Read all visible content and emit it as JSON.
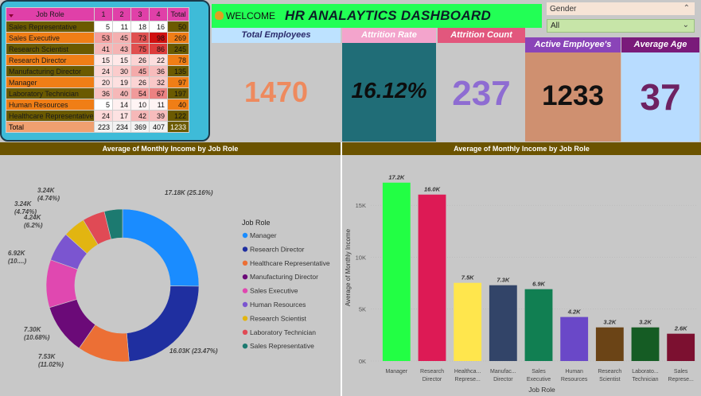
{
  "matrix": {
    "headers": [
      "Job Role",
      "1",
      "2",
      "3",
      "4",
      "Total"
    ],
    "rows": [
      {
        "role": "Sales Representative",
        "v": [
          "5",
          "11",
          "18",
          "16"
        ],
        "total": "50",
        "bg": "#6b5a00",
        "c": [
          "#ffffff",
          "#ffffff",
          "#ffffff",
          "#ffffff"
        ]
      },
      {
        "role": "Sales Executive",
        "v": [
          "53",
          "45",
          "73",
          "98"
        ],
        "total": "269",
        "bg": "#f07e16",
        "c": [
          "#f4a0a0",
          "#f4b0b0",
          "#e05050",
          "#d01010"
        ]
      },
      {
        "role": "Research Scientist",
        "v": [
          "41",
          "43",
          "75",
          "86"
        ],
        "total": "245",
        "bg": "#6b5a00",
        "c": [
          "#f6b8b8",
          "#f5b4b4",
          "#e05050",
          "#dd3c3c"
        ]
      },
      {
        "role": "Research Director",
        "v": [
          "15",
          "15",
          "26",
          "22"
        ],
        "total": "78",
        "bg": "#f07e16",
        "c": [
          "#ffe8e8",
          "#ffe8e8",
          "#fbd4d4",
          "#fcdede"
        ]
      },
      {
        "role": "Manufacturing Director",
        "v": [
          "24",
          "30",
          "45",
          "36"
        ],
        "total": "135",
        "bg": "#6b5a00",
        "c": [
          "#fcd8d8",
          "#fbcccc",
          "#f4aaaa",
          "#f7bcbc"
        ]
      },
      {
        "role": "Manager",
        "v": [
          "20",
          "19",
          "26",
          "32"
        ],
        "total": "97",
        "bg": "#f07e16",
        "c": [
          "#fde0e0",
          "#fde0e0",
          "#fbd4d4",
          "#f9c8c8"
        ]
      },
      {
        "role": "Laboratory Technician",
        "v": [
          "36",
          "40",
          "54",
          "67"
        ],
        "total": "197",
        "bg": "#6b5a00",
        "c": [
          "#f8c2c2",
          "#f6b8b8",
          "#f09a9a",
          "#ec8282"
        ]
      },
      {
        "role": "Human Resources",
        "v": [
          "5",
          "14",
          "10",
          "11"
        ],
        "total": "40",
        "bg": "#f07e16",
        "c": [
          "#ffffff",
          "#fff0f0",
          "#fff4f4",
          "#fff4f4"
        ]
      },
      {
        "role": "Healthcare Representative",
        "v": [
          "24",
          "17",
          "42",
          "39"
        ],
        "total": "122",
        "bg": "#6b5a00",
        "c": [
          "#fcd8d8",
          "#fde2e2",
          "#f6b8b8",
          "#f7bcbc"
        ]
      }
    ],
    "total_row": {
      "role": "Total",
      "v": [
        "223",
        "234",
        "369",
        "407"
      ],
      "total": "1233"
    }
  },
  "header": {
    "welcome": "WELCOME",
    "title": "HR ANALAYTICS DASHBOARD"
  },
  "slicer": {
    "label": "Gender",
    "value": "All"
  },
  "kpis": {
    "total_employees": {
      "title": "Total Employees",
      "value": "1470"
    },
    "attrition_rate": {
      "title": "Attrition Rate",
      "value": "16.12%"
    },
    "attrition_count": {
      "title": "Attrition Count",
      "value": "237"
    },
    "active_employees": {
      "title": "Active Employee's",
      "value": "1233"
    },
    "average_age": {
      "title": "Average Age",
      "value": "37"
    }
  },
  "chart_data": [
    {
      "type": "pie",
      "title": "Average of Monthly Income by Job Role",
      "legend_title": "Job Role",
      "legend_position": "right",
      "slices": [
        {
          "name": "Manager",
          "value": 17.18,
          "label": "17.18K (25.16%)",
          "color": "#1a8cff"
        },
        {
          "name": "Research Director",
          "value": 16.03,
          "label": "16.03K (23.47%)",
          "color": "#1f2fa0"
        },
        {
          "name": "Healthcare Representative",
          "value": 7.53,
          "label": "7.53K (11.02%)",
          "color": "#ec6f35"
        },
        {
          "name": "Manufacturing Director",
          "value": 7.3,
          "label": "7.30K (10.68%)",
          "color": "#6b0a78"
        },
        {
          "name": "Sales Executive",
          "value": 6.92,
          "label": "6.92K (10....)",
          "color": "#e048b0"
        },
        {
          "name": "Human Resources",
          "value": 4.24,
          "label": "4.24K (6.2%)",
          "color": "#7b55d0"
        },
        {
          "name": "Research Scientist",
          "value": 3.24,
          "label": "3.24K (4.74%)",
          "color": "#e2b511"
        },
        {
          "name": "Laboratory Technician",
          "value": 3.24,
          "label": "3.24K (4.74%)",
          "color": "#e04a55"
        },
        {
          "name": "Sales Representative",
          "value": 2.63,
          "label": "",
          "color": "#1c7a70"
        }
      ]
    },
    {
      "type": "bar",
      "title": "Average of Monthly Income by Job Role",
      "xlabel": "Job Role",
      "ylabel": "Average of Monthly Income",
      "ylim": [
        0,
        18000
      ],
      "yticks": [
        "0K",
        "5K",
        "10K",
        "15K"
      ],
      "categories": [
        "Manager",
        "Research Director",
        "Healthca... Represe...",
        "Manufac... Director",
        "Sales Executive",
        "Human Resources",
        "Research Scientist",
        "Laborato... Technician",
        "Sales Represe..."
      ],
      "values": [
        17180,
        16030,
        7530,
        7300,
        6920,
        4240,
        3240,
        3240,
        2630
      ],
      "data_labels": [
        "17.2K",
        "16.0K",
        "7.5K",
        "7.3K",
        "6.9K",
        "4.2K",
        "3.2K",
        "3.2K",
        "2.6K"
      ],
      "colors": [
        "#22ff44",
        "#dd1a55",
        "#ffe64d",
        "#324468",
        "#117f52",
        "#6a48c8",
        "#6b4416",
        "#155c24",
        "#7c1030"
      ]
    }
  ]
}
